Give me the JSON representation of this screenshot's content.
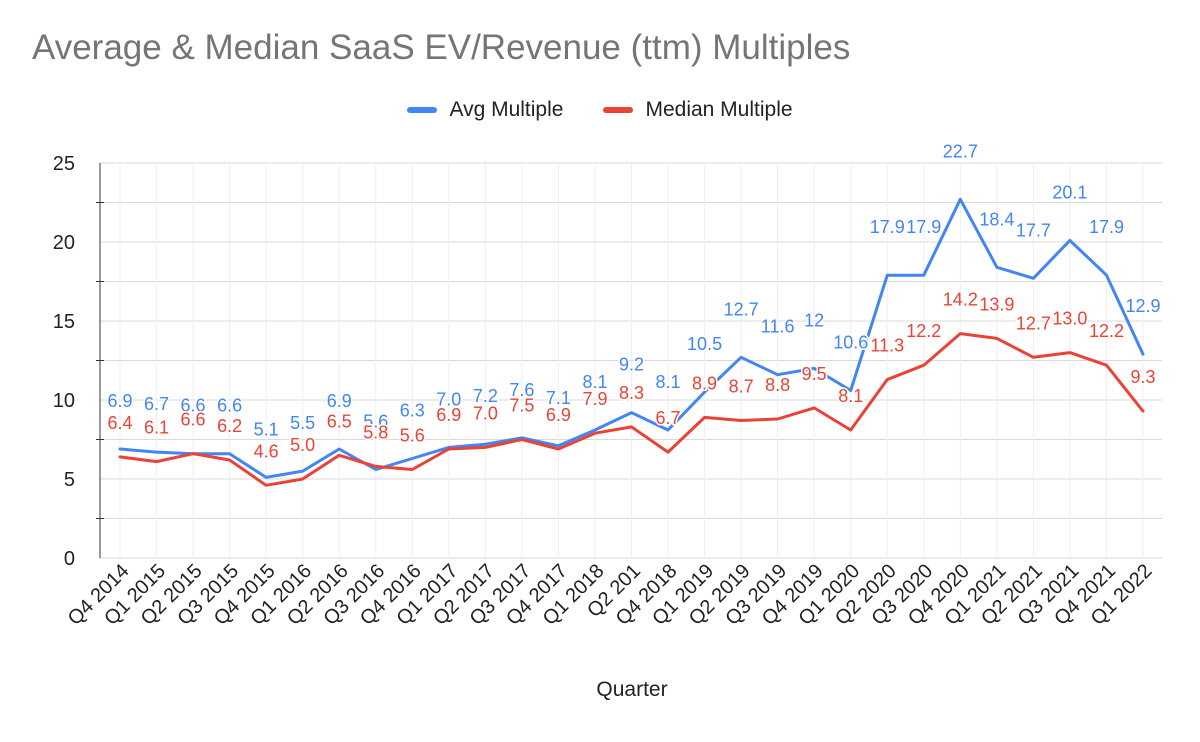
{
  "chart_data": {
    "type": "line",
    "title": "Average & Median SaaS EV/Revenue (ttm) Multiples",
    "xlabel": "Quarter",
    "ylabel": "",
    "ylim": [
      0,
      25
    ],
    "yticks": [
      0,
      5,
      10,
      15,
      20,
      25
    ],
    "grid": true,
    "legend_position": "top-center",
    "categories": [
      "Q4 2014",
      "Q1 2015",
      "Q2 2015",
      "Q3 2015",
      "Q4 2015",
      "Q1 2016",
      "Q2 2016",
      "Q3 2016",
      "Q4 2016",
      "Q1 2017",
      "Q2 2017",
      "Q3 2017",
      "Q4 2017",
      "Q1 2018",
      "Q2 201",
      "Q4 2018",
      "Q1 2019",
      "Q2 2019",
      "Q3 2019",
      "Q4 2019",
      "Q1 2020",
      "Q2 2020",
      "Q3 2020",
      "Q4 2020",
      "Q1 2021",
      "Q2 2021",
      "Q3 2021",
      "Q4 2021",
      "Q1 2022"
    ],
    "series": [
      {
        "name": "Avg Multiple",
        "color": "#4285f4",
        "values": [
          6.9,
          6.7,
          6.6,
          6.6,
          5.1,
          5.5,
          6.9,
          5.6,
          6.3,
          7.0,
          7.2,
          7.6,
          7.1,
          8.1,
          9.2,
          8.1,
          10.5,
          12.7,
          11.6,
          12.0,
          10.6,
          17.9,
          17.9,
          22.7,
          18.4,
          17.7,
          20.1,
          17.9,
          12.9
        ],
        "labels": [
          "6.9",
          "6.7",
          "6.6",
          "6.6",
          "5.1",
          "5.5",
          "6.9",
          "5.6",
          "6.3",
          "7.0",
          "7.2",
          "7.6",
          "7.1",
          "8.1",
          "9.2",
          "8.1",
          "10.5",
          "12.7",
          "11.6",
          "12",
          "10.6",
          "17.9",
          "17.9",
          "22.7",
          "18.4",
          "17.7",
          "20.1",
          "17.9",
          "12.9"
        ]
      },
      {
        "name": "Median Multiple",
        "color": "#ea4335",
        "values": [
          6.4,
          6.1,
          6.6,
          6.2,
          4.6,
          5.0,
          6.5,
          5.8,
          5.6,
          6.9,
          7.0,
          7.5,
          6.9,
          7.9,
          8.3,
          6.7,
          8.9,
          8.7,
          8.8,
          9.5,
          8.1,
          11.3,
          12.2,
          14.2,
          13.9,
          12.7,
          13.0,
          12.2,
          9.3
        ],
        "labels": [
          "6.4",
          "6.1",
          "6.6",
          "6.2",
          "4.6",
          "5.0",
          "6.5",
          "5.8",
          "5.6",
          "6.9",
          "7.0",
          "7.5",
          "6.9",
          "7.9",
          "8.3",
          "6.7",
          "8.9",
          "8.7",
          "8.8",
          "9.5",
          "8.1",
          "11.3",
          "12.2",
          "14.2",
          "13.9",
          "12.7",
          "13.0",
          "12.2",
          "9.3"
        ]
      }
    ]
  }
}
